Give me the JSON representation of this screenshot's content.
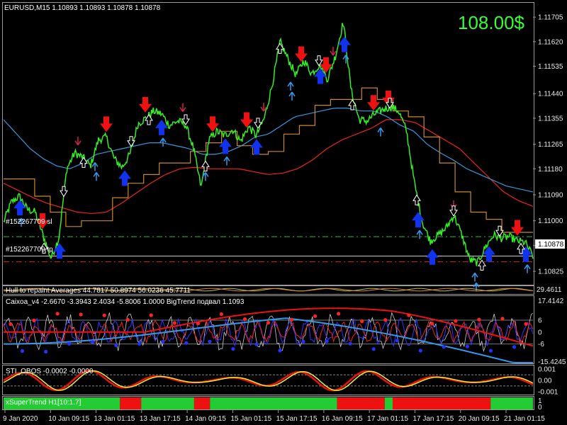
{
  "header": {
    "symbol_line": "EURUSD,M15  1.10893 1.10893 1.10878 1.10878",
    "profit": "108.00$"
  },
  "colors": {
    "background": "#000000",
    "price_line": "#33ee22",
    "slow_ma": "#ee2222",
    "mid_ma": "#3399dd",
    "step_line": "#cc8822",
    "sell_arrow": "#ee1111",
    "sell_arrow_thin": "#cc2244",
    "buy_arrow": "#1133ee",
    "buy_arrow_thin": "#3399ee",
    "white_arrow": "#ffffff"
  },
  "orders": {
    "sl_label": "#152267709 sl",
    "tp_label": "#152267709 tp"
  },
  "panes": {
    "ind1_label": "Hull to repaint Averages 44.7817 50.8974 56.0236 45.7711",
    "ind1_right": "29.4611",
    "ind2_label": "Caixoa_v4 -2.6670 -3.3943 2.4034 -5.8006 1.0000  BigTrend подвал 1.1093",
    "ind2_ticks": [
      "17.4142",
      "6",
      "0",
      "-6",
      "-15.4245"
    ],
    "ind3_label": "STI_OBOS -0.0002 -0.0000",
    "ind3_ticks": [
      "0.001",
      "0.00",
      "-0.001"
    ],
    "ind4_label": "xSuperTrend H1[10:1.7]",
    "ind4_ticks": [
      "1",
      "0"
    ]
  },
  "chart_data": {
    "type": "line",
    "symbol": "EURUSD",
    "timeframe": "M15",
    "ohlc_last": {
      "open": 1.10893,
      "high": 1.10893,
      "low": 1.10878,
      "close": 1.10878
    },
    "current_price": "1.10878",
    "ylim": [
      1.10781,
      1.11752
    ],
    "y_ticks": [
      "1.11705",
      "1.11620",
      "1.11535",
      "1.11440",
      "1.11355",
      "1.11265",
      "1.11180",
      "1.11090",
      "1.11000",
      "1.10915",
      "1.10825"
    ],
    "x_ticks": [
      "9 Jan 2020",
      "10 Jan 09:15",
      "13 Jan 01:15",
      "13 Jan 17:15",
      "14 Jan 09:15",
      "15 Jan 01:15",
      "15 Jan 17:15",
      "16 Jan 09:15",
      "17 Jan 01:15",
      "17 Jan 17:15",
      "20 Jan 09:15",
      "21 Jan 01:15"
    ],
    "series": [
      {
        "values": [
          1.10995,
          1.11065,
          1.11085,
          1.1104,
          1.1103,
          1.1095,
          1.1087,
          1.1094,
          1.1118,
          1.11235,
          1.1122,
          1.1119,
          1.1128,
          1.1129,
          1.11215,
          1.11185,
          1.1123,
          1.11335,
          1.11355,
          1.1138,
          1.1137,
          1.1133,
          1.11345,
          1.11335,
          1.11255,
          1.11115,
          1.1128,
          1.1131,
          1.11295,
          1.11315,
          1.11275,
          1.11325,
          1.11295,
          1.11355,
          1.1147,
          1.1162,
          1.1156,
          1.11505,
          1.11555,
          1.1151,
          1.1154,
          1.1149,
          1.1157,
          1.1169,
          1.1145,
          1.1135,
          1.11345,
          1.1137,
          1.11385,
          1.11395,
          1.1138,
          1.1131,
          1.1113,
          1.10995,
          1.1093,
          1.1095,
          1.10975,
          1.1102,
          1.1095,
          1.10865,
          1.10855,
          1.1091,
          1.1095,
          1.1094,
          1.10945,
          1.1093,
          1.10925,
          1.10878
        ]
      },
      {
        "values": [
          1.1113,
          1.11105,
          1.1108,
          1.1106,
          1.11045,
          1.1103,
          1.11025,
          1.1103,
          1.1106,
          1.11095,
          1.1113,
          1.1116,
          1.1118,
          1.11185,
          1.1118,
          1.1118,
          1.1118,
          1.1117,
          1.1116,
          1.11165,
          1.1118,
          1.1121,
          1.1125,
          1.1128,
          1.113,
          1.1132,
          1.1135,
          1.1135,
          1.1134,
          1.1131,
          1.1128,
          1.1125,
          1.112,
          1.1115,
          1.111,
          1.1107,
          1.1105
        ]
      },
      {
        "values": [
          1.1135,
          1.113,
          1.1125,
          1.11215,
          1.1119,
          1.1118,
          1.112,
          1.1123,
          1.1124,
          1.1125,
          1.1126,
          1.1127,
          1.1127,
          1.1126,
          1.1125,
          1.1123,
          1.1123,
          1.1124,
          1.1126,
          1.1129,
          1.113,
          1.1133,
          1.1136,
          1.1137,
          1.1138,
          1.1139,
          1.1139,
          1.1138,
          1.1138,
          1.1136,
          1.1133,
          1.1131,
          1.11265,
          1.11235,
          1.1121,
          1.1118,
          1.1116,
          1.1114,
          1.1112,
          1.1111,
          1.111
        ]
      },
      {
        "values": [
          1.11145,
          1.11145,
          1.11085,
          1.1103,
          1.1098,
          1.11,
          1.11,
          1.1108,
          1.1113,
          1.1116,
          1.112,
          1.112,
          1.1124,
          1.1127,
          1.1131,
          1.1126,
          1.1123,
          1.1124,
          1.113,
          1.1133,
          1.114,
          1.1142,
          1.1142,
          1.1146,
          1.1142,
          1.1138,
          1.1136,
          1.1129,
          1.112,
          1.111,
          1.1103,
          1.11005,
          1.1096,
          1.1096
        ]
      }
    ],
    "annotations": {
      "sl_level": 1.10945,
      "tp_level": 1.10858
    }
  }
}
